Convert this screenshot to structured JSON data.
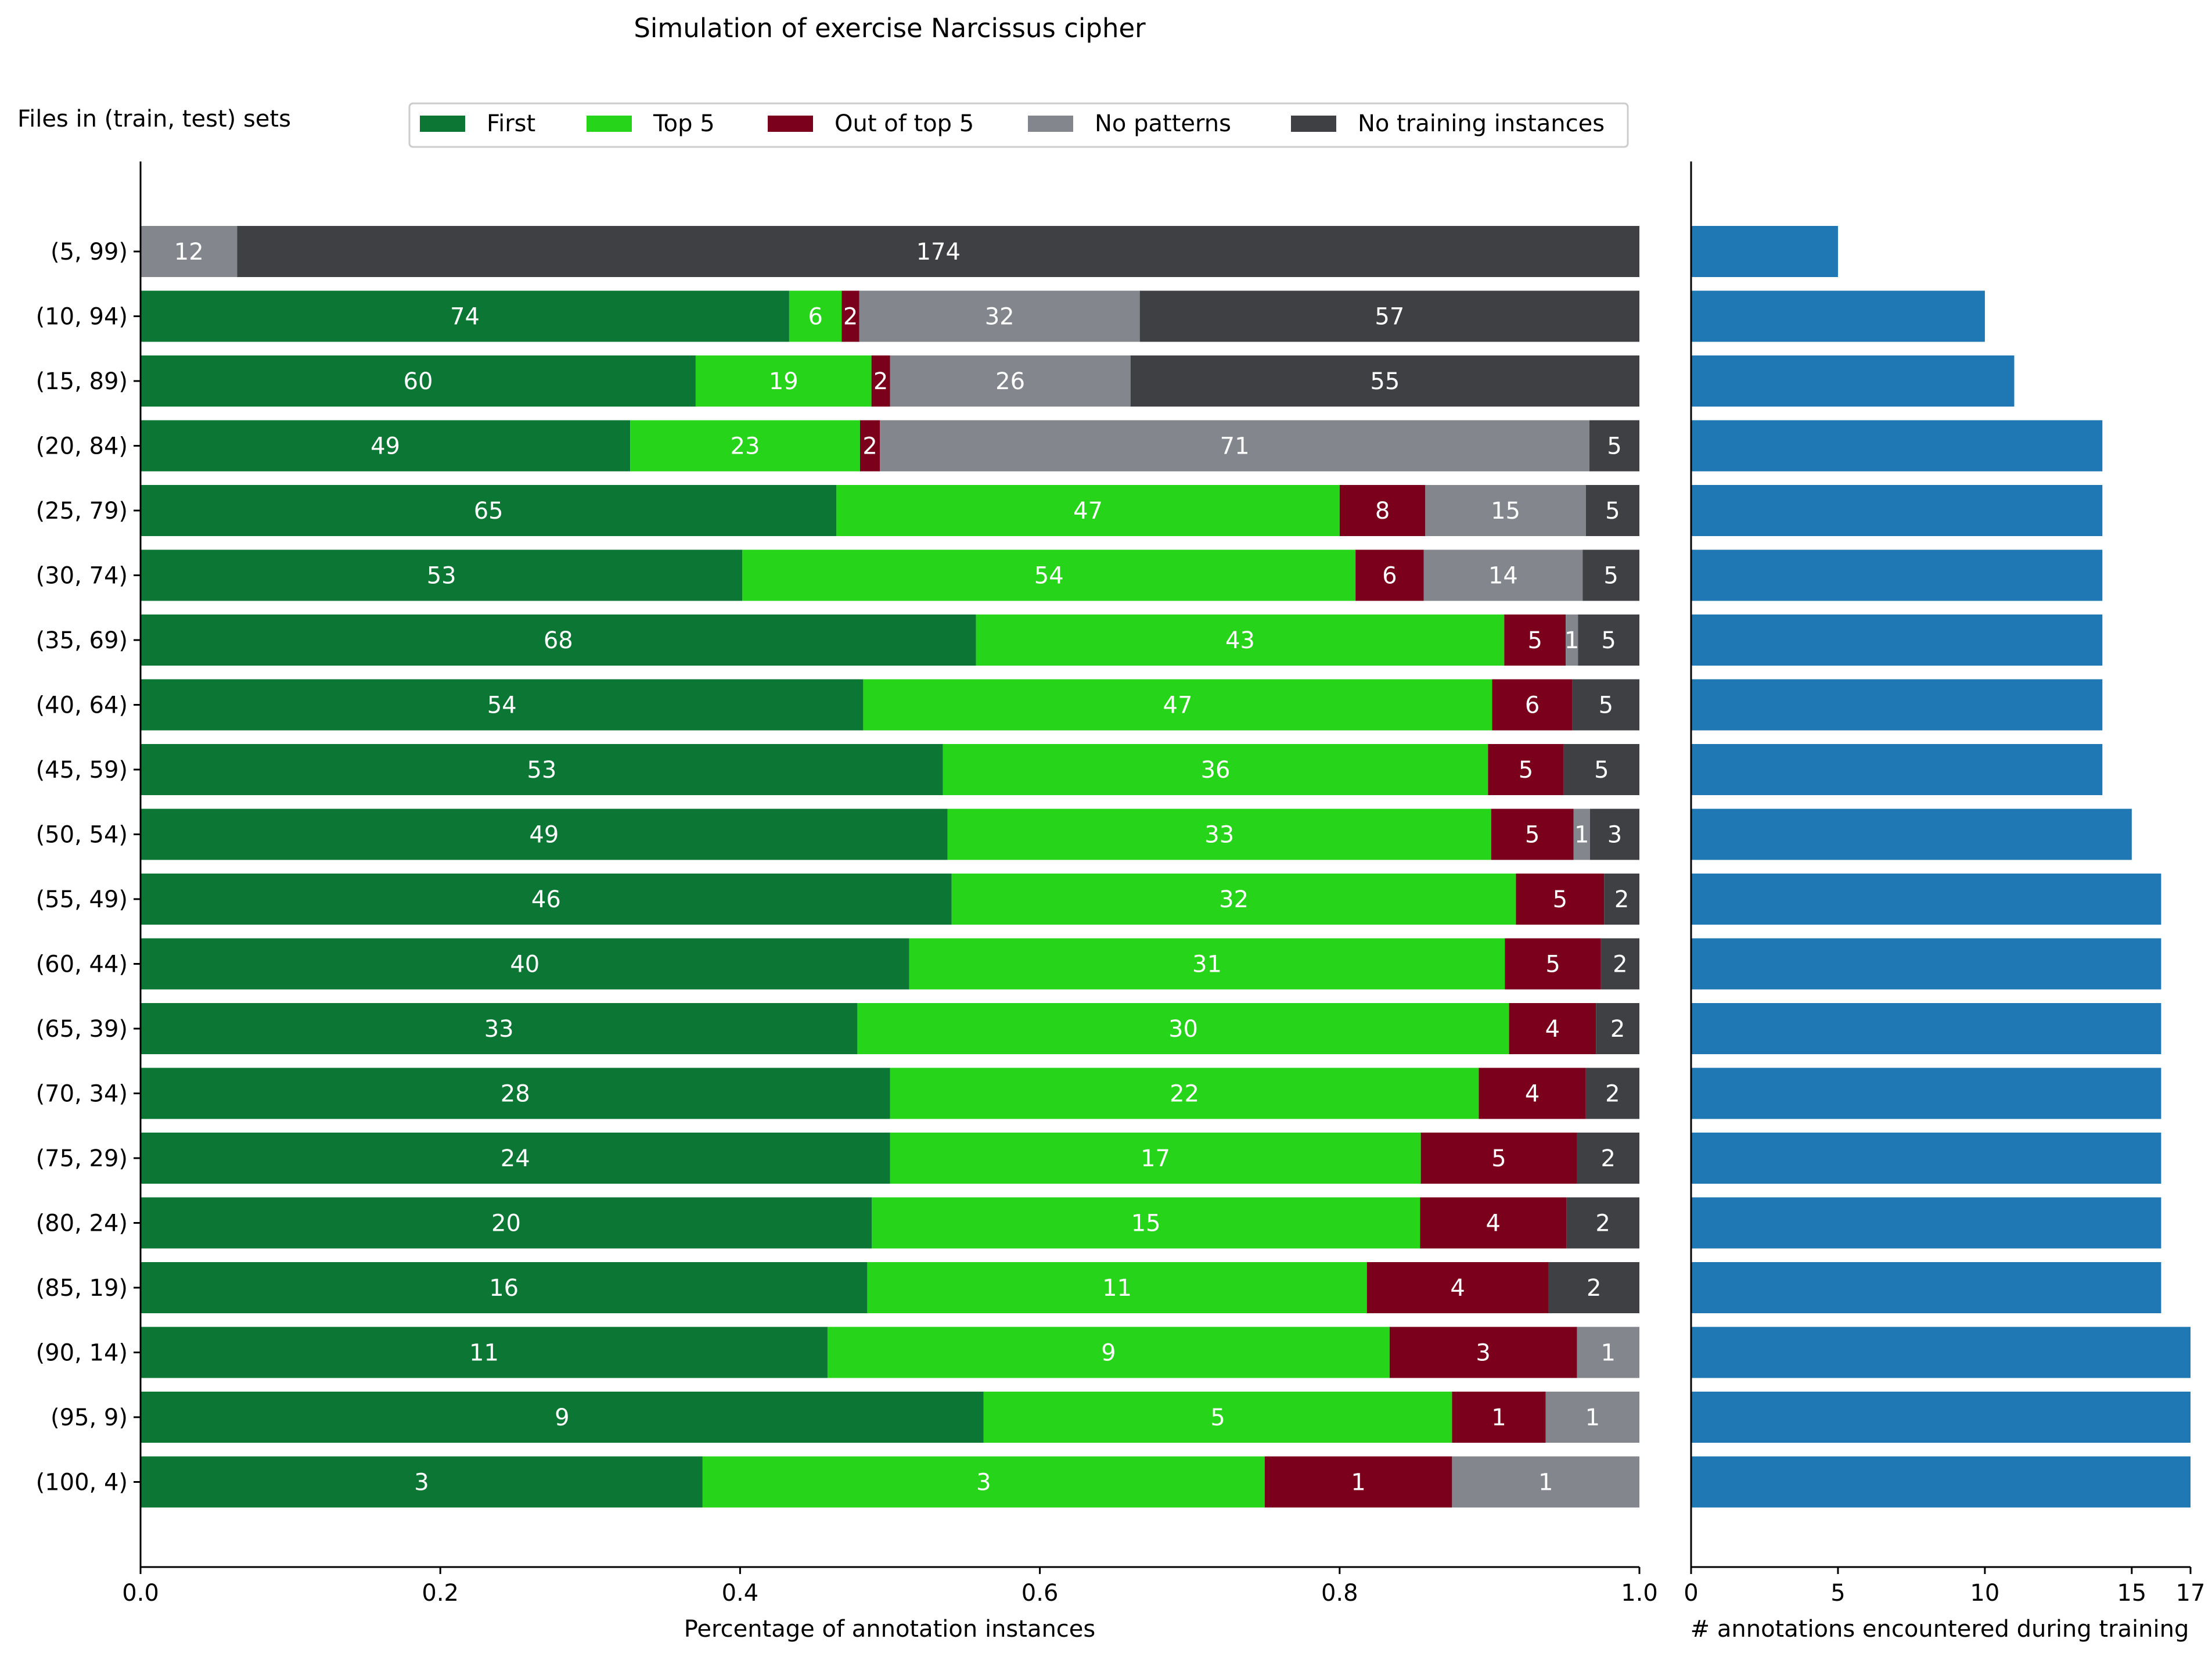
{
  "chart_data": [
    {
      "type": "bar",
      "orientation": "horizontal",
      "stacked": true,
      "normalized": true,
      "title": "Simulation of exercise Narcissus cipher",
      "ylabel": "Files in (train, test) sets",
      "xlabel": "Percentage of annotation instances",
      "xlim": [
        0,
        1
      ],
      "xticks": [
        "0.0",
        "0.2",
        "0.4",
        "0.6",
        "0.8",
        "1.0"
      ],
      "legend_position": "top",
      "categories": [
        "(5, 99)",
        "(10, 94)",
        "(15, 89)",
        "(20, 84)",
        "(25, 79)",
        "(30, 74)",
        "(35, 69)",
        "(40, 64)",
        "(45, 59)",
        "(50, 54)",
        "(55, 49)",
        "(60, 44)",
        "(65, 39)",
        "(70, 34)",
        "(75, 29)",
        "(80, 24)",
        "(85, 19)",
        "(90, 14)",
        "(95, 9)",
        "(100, 4)"
      ],
      "series": [
        {
          "name": "First",
          "color": "#0c7734",
          "values": [
            0,
            74,
            60,
            49,
            65,
            53,
            68,
            54,
            53,
            49,
            46,
            40,
            33,
            28,
            24,
            20,
            16,
            11,
            9,
            3
          ]
        },
        {
          "name": "Top 5",
          "color": "#26d41a",
          "values": [
            0,
            6,
            19,
            23,
            47,
            54,
            43,
            47,
            36,
            33,
            32,
            31,
            30,
            22,
            17,
            15,
            11,
            9,
            5,
            3
          ]
        },
        {
          "name": "Out of top 5",
          "color": "#7b001c",
          "values": [
            0,
            2,
            2,
            2,
            8,
            6,
            5,
            6,
            5,
            5,
            5,
            5,
            4,
            4,
            5,
            4,
            4,
            3,
            1,
            1
          ]
        },
        {
          "name": "No patterns",
          "color": "#84868e",
          "values": [
            12,
            32,
            26,
            71,
            15,
            14,
            1,
            0,
            0,
            1,
            0,
            0,
            0,
            0,
            0,
            0,
            0,
            1,
            1,
            1
          ]
        },
        {
          "name": "No training instances",
          "color": "#3f4044",
          "values": [
            174,
            57,
            55,
            5,
            5,
            5,
            5,
            5,
            5,
            3,
            2,
            2,
            2,
            2,
            2,
            2,
            2,
            0,
            0,
            0
          ]
        }
      ]
    },
    {
      "type": "bar",
      "orientation": "horizontal",
      "xlabel": "# annotations encountered during training",
      "xlim": [
        0,
        17
      ],
      "xticks": [
        "0",
        "5",
        "10",
        "15",
        "17"
      ],
      "color": "#1f77b4",
      "categories": [
        "(5, 99)",
        "(10, 94)",
        "(15, 89)",
        "(20, 84)",
        "(25, 79)",
        "(30, 74)",
        "(35, 69)",
        "(40, 64)",
        "(45, 59)",
        "(50, 54)",
        "(55, 49)",
        "(60, 44)",
        "(65, 39)",
        "(70, 34)",
        "(75, 29)",
        "(80, 24)",
        "(85, 19)",
        "(90, 14)",
        "(95, 9)",
        "(100, 4)"
      ],
      "values": [
        5,
        10,
        11,
        14,
        14,
        14,
        14,
        14,
        14,
        15,
        16,
        16,
        16,
        16,
        16,
        16,
        16,
        17,
        17,
        17
      ]
    }
  ]
}
